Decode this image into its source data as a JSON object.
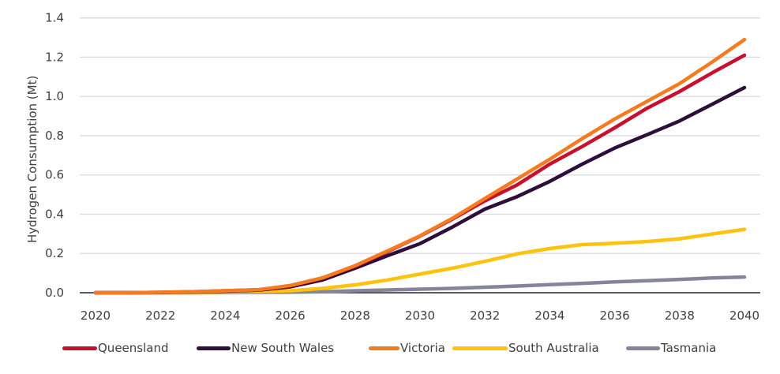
{
  "chart_data": {
    "type": "line",
    "title": "",
    "xlabel": "",
    "ylabel": "Hydrogen Consumption (Mt)",
    "ylim": [
      0,
      1.4
    ],
    "xlim": [
      2020,
      2040
    ],
    "yticks": [
      "0.0",
      "0.2",
      "0.4",
      "0.6",
      "0.8",
      "1.0",
      "1.2",
      "1.4"
    ],
    "ytick_values": [
      0,
      0.2,
      0.4,
      0.6,
      0.8,
      1.0,
      1.2,
      1.4
    ],
    "xticks": [
      "2020",
      "2022",
      "2024",
      "2026",
      "2028",
      "2030",
      "2032",
      "2034",
      "2036",
      "2038",
      "2040"
    ],
    "xtick_values": [
      2020,
      2022,
      2024,
      2026,
      2028,
      2030,
      2032,
      2034,
      2036,
      2038,
      2040
    ],
    "grid": "horizontal",
    "legend_position": "bottom",
    "x": [
      2020,
      2021,
      2022,
      2023,
      2024,
      2025,
      2026,
      2027,
      2028,
      2029,
      2030,
      2031,
      2032,
      2033,
      2034,
      2035,
      2036,
      2037,
      2038,
      2039,
      2040
    ],
    "series": [
      {
        "name": "Queensland",
        "color": "#C8102E",
        "values": [
          0,
          0,
          0.002,
          0.005,
          0.01,
          0.015,
          0.035,
          0.075,
          0.135,
          0.21,
          0.288,
          0.375,
          0.468,
          0.55,
          0.655,
          0.745,
          0.84,
          0.94,
          1.025,
          1.12,
          1.21
        ]
      },
      {
        "name": "New South Wales",
        "color": "#2E0F3B",
        "values": [
          0,
          0,
          0.001,
          0.004,
          0.008,
          0.013,
          0.03,
          0.065,
          0.125,
          0.189,
          0.25,
          0.335,
          0.426,
          0.49,
          0.567,
          0.655,
          0.737,
          0.805,
          0.875,
          0.96,
          1.045
        ]
      },
      {
        "name": "Victoria",
        "color": "#F47B20",
        "values": [
          0,
          0,
          0.002,
          0.005,
          0.01,
          0.015,
          0.037,
          0.076,
          0.138,
          0.213,
          0.29,
          0.379,
          0.48,
          0.58,
          0.68,
          0.785,
          0.885,
          0.975,
          1.065,
          1.175,
          1.29
        ]
      },
      {
        "name": "South Australia",
        "color": "#FFC20E",
        "values": [
          0,
          0,
          0,
          0.002,
          0.004,
          0.006,
          0.01,
          0.022,
          0.04,
          0.065,
          0.095,
          0.125,
          0.16,
          0.198,
          0.225,
          0.245,
          0.252,
          0.261,
          0.275,
          0.299,
          0.323
        ]
      },
      {
        "name": "Tasmania",
        "color": "#85859A",
        "values": [
          0,
          0,
          0,
          0,
          0.001,
          0.002,
          0.003,
          0.005,
          0.01,
          0.014,
          0.018,
          0.022,
          0.028,
          0.034,
          0.041,
          0.048,
          0.055,
          0.061,
          0.068,
          0.075,
          0.08
        ]
      }
    ]
  },
  "colors": {
    "gridline": "#D9D9D9",
    "axis": "#262626",
    "text": "#404040"
  }
}
